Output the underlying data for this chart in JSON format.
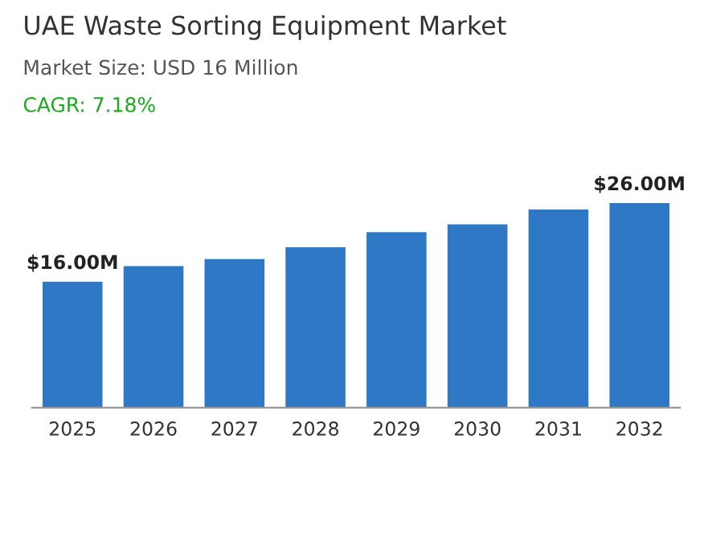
{
  "chart_data": {
    "type": "bar",
    "title": "UAE Waste Sorting Equipment Market",
    "subtitle": "Market Size: USD 16 Million",
    "annotations": [
      "CAGR: 7.18%"
    ],
    "categories": [
      "2025",
      "2026",
      "2027",
      "2028",
      "2029",
      "2030",
      "2031",
      "2032"
    ],
    "values": [
      16.0,
      18.0,
      18.9,
      20.4,
      22.3,
      23.3,
      25.2,
      26.0
    ],
    "value_labels": [
      "$16.00M",
      null,
      null,
      null,
      null,
      null,
      null,
      "$26.00M"
    ],
    "color": "#2e78c6",
    "grid": false,
    "legend": false,
    "tick_labels": "x"
  }
}
